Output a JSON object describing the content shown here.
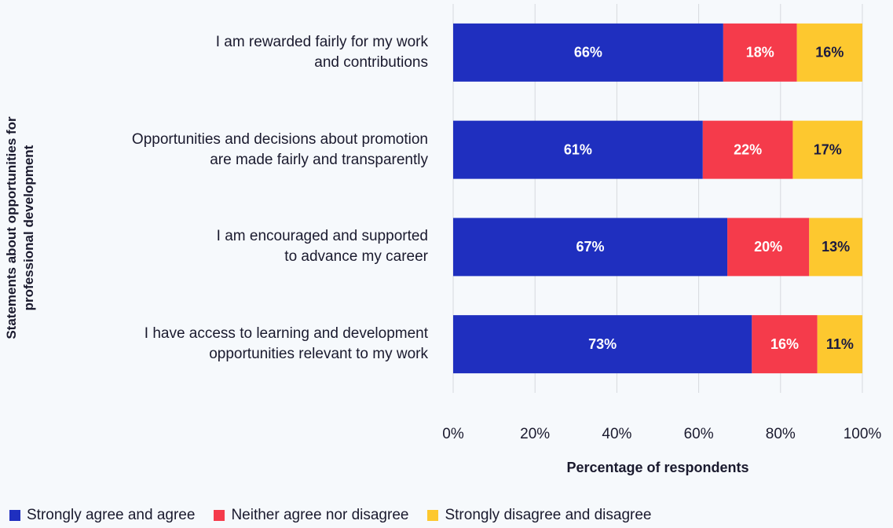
{
  "chart_data": {
    "type": "stacked_bar_horizontal",
    "ylabel": "Statements about opportunities for\nprofessional development",
    "xlabel": "Percentage of respondents",
    "categories": [
      "I am rewarded fairly for my work\nand contributions",
      "Opportunities and decisions about promotion\nare made fairly and transparently",
      "I am encouraged and supported\nto advance my career",
      "I have access to learning and development\nopportunities relevant to my work"
    ],
    "series": [
      {
        "name": "Strongly agree and agree",
        "color": "#1f2fbf",
        "label_color": "#ffffff",
        "values": [
          66,
          61,
          67,
          73
        ],
        "value_labels": [
          "66%",
          "61%",
          "67%",
          "73%"
        ]
      },
      {
        "name": "Neither agree nor disagree",
        "color": "#f53b4b",
        "label_color": "#ffffff",
        "values": [
          18,
          22,
          20,
          16
        ],
        "value_labels": [
          "18%",
          "22%",
          "20%",
          "16%"
        ]
      },
      {
        "name": "Strongly disagree and disagree",
        "color": "#fdc82f",
        "label_color": "#1a1a40",
        "values": [
          16,
          17,
          13,
          11
        ],
        "value_labels": [
          "16%",
          "17%",
          "13%",
          "11%"
        ]
      }
    ],
    "xlim": [
      0,
      100
    ],
    "xticks": [
      {
        "value": 0,
        "label": "0%"
      },
      {
        "value": 20,
        "label": "20%"
      },
      {
        "value": 40,
        "label": "40%"
      },
      {
        "value": 60,
        "label": "60%"
      },
      {
        "value": 80,
        "label": "80%"
      },
      {
        "value": 100,
        "label": "100%"
      }
    ],
    "grid": true,
    "legend": "bottom"
  }
}
